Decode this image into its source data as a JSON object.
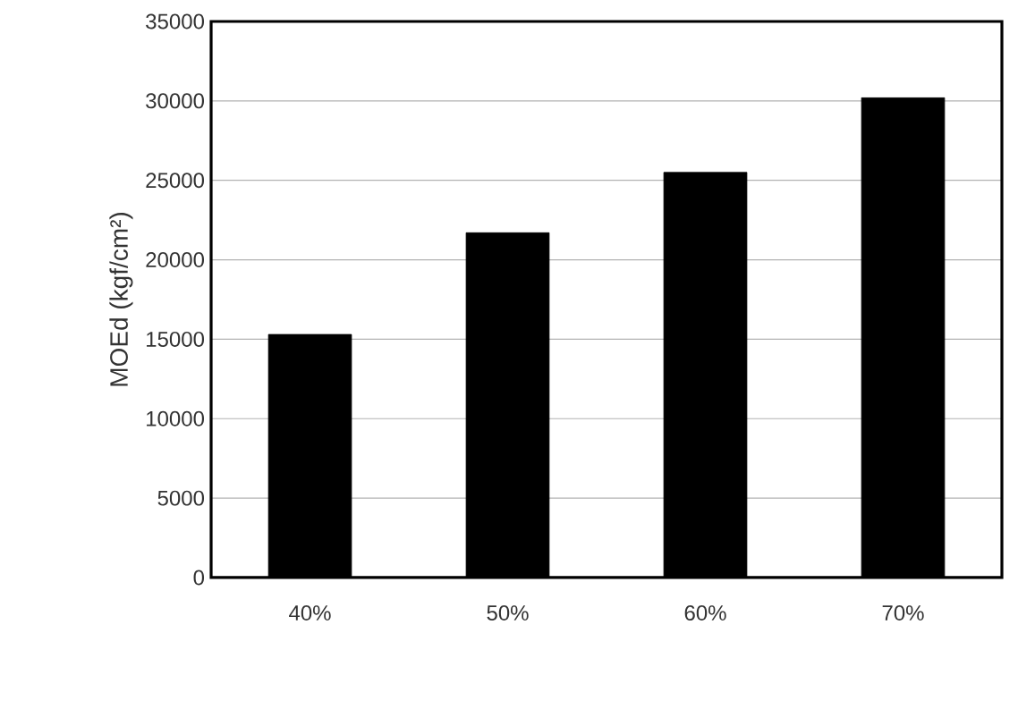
{
  "chart_data": {
    "type": "bar",
    "ylabel": "MOEd (kgf/cm²)",
    "categories": [
      "40%",
      "50%",
      "60%",
      "70%"
    ],
    "values": [
      15300,
      21700,
      25500,
      30200
    ],
    "color": "#000000",
    "ylim": [
      0,
      35000
    ],
    "yticks": [
      0,
      5000,
      10000,
      15000,
      20000,
      25000,
      30000,
      35000
    ],
    "grid": "y"
  }
}
